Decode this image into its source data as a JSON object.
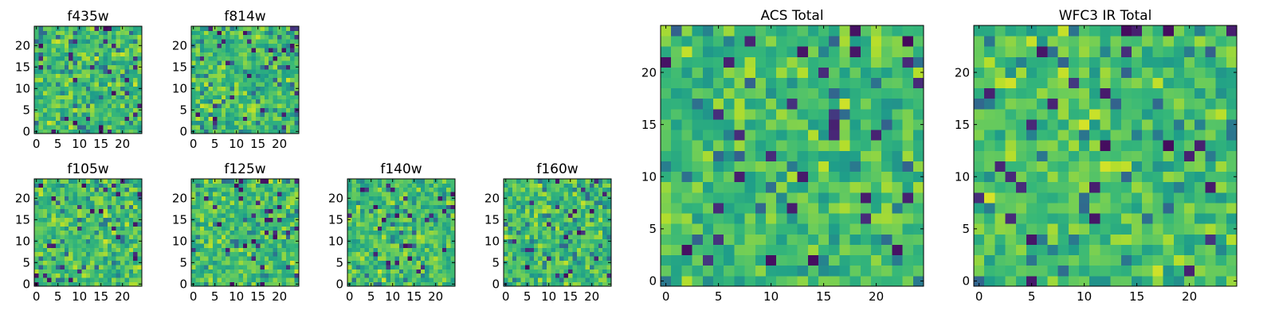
{
  "chart_data": [
    {
      "type": "heatmap",
      "title": "f435w",
      "shape": [
        25,
        25
      ],
      "colormap": "viridis",
      "xticks": [
        0,
        5,
        10,
        15,
        20
      ],
      "yticks": [
        0,
        5,
        10,
        15,
        20
      ],
      "xlim": [
        -0.5,
        24.5
      ],
      "ylim": [
        -0.5,
        24.5
      ],
      "seed": 11
    },
    {
      "type": "heatmap",
      "title": "f814w",
      "shape": [
        25,
        25
      ],
      "colormap": "viridis",
      "xticks": [
        0,
        5,
        10,
        15,
        20
      ],
      "yticks": [
        0,
        5,
        10,
        15,
        20
      ],
      "xlim": [
        -0.5,
        24.5
      ],
      "ylim": [
        -0.5,
        24.5
      ],
      "seed": 23
    },
    {
      "type": "heatmap",
      "title": "f105w",
      "shape": [
        25,
        25
      ],
      "colormap": "viridis",
      "xticks": [
        0,
        5,
        10,
        15,
        20
      ],
      "yticks": [
        0,
        5,
        10,
        15,
        20
      ],
      "xlim": [
        -0.5,
        24.5
      ],
      "ylim": [
        -0.5,
        24.5
      ],
      "seed": 37
    },
    {
      "type": "heatmap",
      "title": "f125w",
      "shape": [
        25,
        25
      ],
      "colormap": "viridis",
      "xticks": [
        0,
        5,
        10,
        15,
        20
      ],
      "yticks": [
        0,
        5,
        10,
        15,
        20
      ],
      "xlim": [
        -0.5,
        24.5
      ],
      "ylim": [
        -0.5,
        24.5
      ],
      "seed": 41
    },
    {
      "type": "heatmap",
      "title": "f140w",
      "shape": [
        25,
        25
      ],
      "colormap": "viridis",
      "xticks": [
        0,
        5,
        10,
        15,
        20
      ],
      "yticks": [
        0,
        5,
        10,
        15,
        20
      ],
      "xlim": [
        -0.5,
        24.5
      ],
      "ylim": [
        -0.5,
        24.5
      ],
      "seed": 53
    },
    {
      "type": "heatmap",
      "title": "f160w",
      "shape": [
        25,
        25
      ],
      "colormap": "viridis",
      "xticks": [
        0,
        5,
        10,
        15,
        20
      ],
      "yticks": [
        0,
        5,
        10,
        15,
        20
      ],
      "xlim": [
        -0.5,
        24.5
      ],
      "ylim": [
        -0.5,
        24.5
      ],
      "seed": 67
    },
    {
      "type": "heatmap",
      "title": "ACS Total",
      "shape": [
        25,
        25
      ],
      "colormap": "viridis",
      "xticks": [
        0,
        5,
        10,
        15,
        20
      ],
      "yticks": [
        0,
        5,
        10,
        15,
        20
      ],
      "xlim": [
        -0.5,
        24.5
      ],
      "ylim": [
        -0.5,
        24.5
      ],
      "seed": 79
    },
    {
      "type": "heatmap",
      "title": "WFC3 IR Total",
      "shape": [
        25,
        25
      ],
      "colormap": "viridis",
      "xticks": [
        0,
        5,
        10,
        15,
        20
      ],
      "yticks": [
        0,
        5,
        10,
        15,
        20
      ],
      "xlim": [
        -0.5,
        24.5
      ],
      "ylim": [
        -0.5,
        24.5
      ],
      "seed": 97
    }
  ]
}
